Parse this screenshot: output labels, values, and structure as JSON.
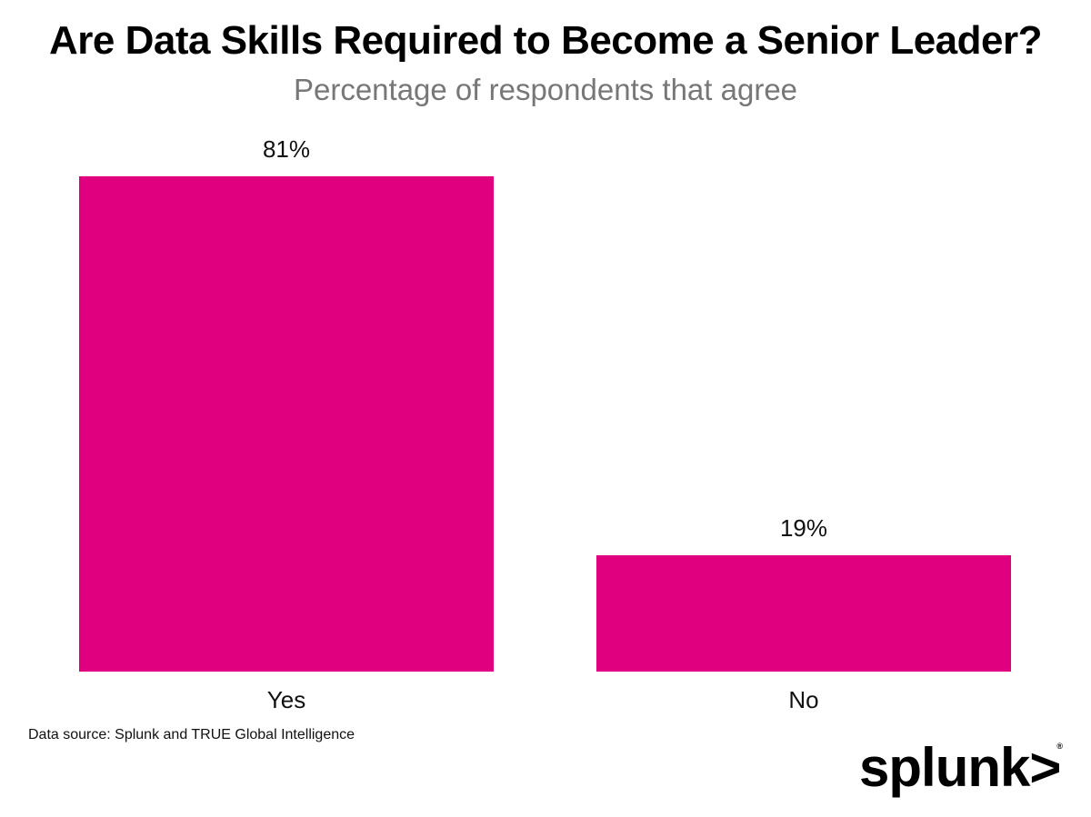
{
  "chart_data": {
    "type": "bar",
    "title": "Are Data Skills Required to Become a Senior Leader?",
    "subtitle": "Percentage of respondents that agree",
    "categories": [
      "Yes",
      "No"
    ],
    "values": [
      81,
      19
    ],
    "value_labels": [
      "81%",
      "19%"
    ],
    "xlabel": "",
    "ylabel": "",
    "ylim": [
      0,
      100
    ],
    "grid": false,
    "legend": "none",
    "bar_color": "#E0007F"
  },
  "header": {
    "title": "Are Data Skills Required to Become a Senior Leader?",
    "subtitle": "Percentage of respondents that agree"
  },
  "bars": [
    {
      "category": "Yes",
      "label": "81%"
    },
    {
      "category": "No",
      "label": "19%"
    }
  ],
  "footer": {
    "source": "Data source: Splunk and TRUE Global Intelligence",
    "logo_text": "splunk>",
    "logo_reg": "®"
  }
}
